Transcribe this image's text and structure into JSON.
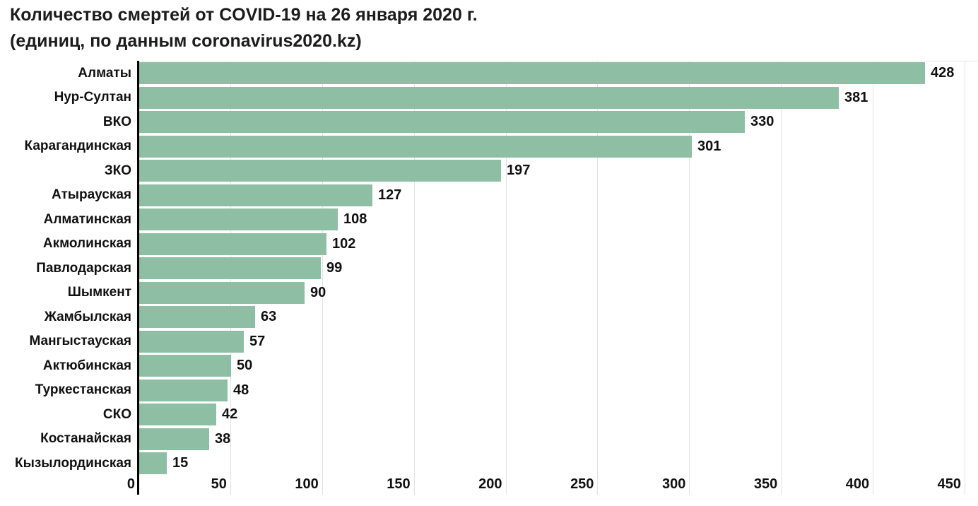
{
  "chart_data": {
    "type": "bar",
    "orientation": "horizontal",
    "title": "Количество смертей от COVID-19 на 26 января 2020 г.",
    "subtitle": "(единиц, по данным coronavirus2020.kz)",
    "categories": [
      "Алматы",
      "Нур-Султан",
      "ВКО",
      "Карагандинская",
      "ЗКО",
      "Атырауская",
      "Алматинская",
      "Акмолинская",
      "Павлодарская",
      "Шымкент",
      "Жамбылская",
      "Мангыстауская",
      "Актюбинская",
      "Туркестанская",
      "СКО",
      "Костанайская",
      "Кызылординская"
    ],
    "values": [
      428,
      381,
      330,
      301,
      197,
      127,
      108,
      102,
      99,
      90,
      63,
      57,
      50,
      48,
      42,
      38,
      15
    ],
    "xlabel": "",
    "ylabel": "",
    "xlim": [
      0,
      450
    ],
    "xticks": [
      0,
      50,
      100,
      150,
      200,
      250,
      300,
      350,
      400,
      450
    ],
    "grid": "vertical",
    "legend": "none",
    "bar_color": "#8ebfa4",
    "axis_color": "#000000",
    "gridline_color": "#e2e2e2",
    "text_color": "#111111"
  }
}
